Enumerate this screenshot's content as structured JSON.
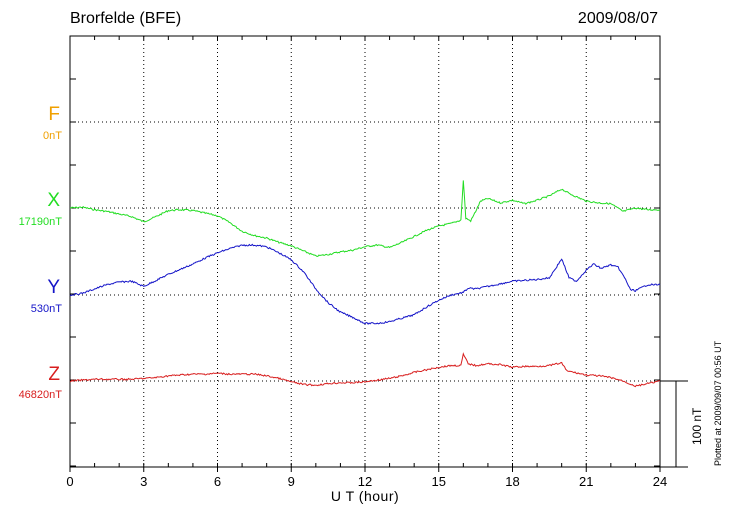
{
  "header": {
    "title": "Brorfelde (BFE)",
    "date": "2009/08/07"
  },
  "footer": {
    "plotted": "Plotted at 2009/09/07 00:56 UT"
  },
  "colors": {
    "F": "#f0a000",
    "X": "#22dd22",
    "Y": "#1414c8",
    "Z": "#d81e1e"
  },
  "chart_data": {
    "type": "line",
    "title": "Brorfelde (BFE)",
    "xlabel": "U T (hour)",
    "ylabel": "",
    "xlim": [
      0,
      24
    ],
    "x_ticks": [
      0,
      3,
      6,
      9,
      12,
      15,
      18,
      21,
      24
    ],
    "scale": {
      "label": "100 nT",
      "nT": 100
    },
    "legend": "left",
    "grid": true,
    "series": [
      {
        "name": "F",
        "baseline_label": "0nT",
        "color": "#f0a000",
        "offset_nT": 0,
        "x": [],
        "values": []
      },
      {
        "name": "X",
        "baseline_label": "17190nT",
        "color": "#22dd22",
        "offset_nT": 17190,
        "x": [
          0,
          0.5,
          1,
          1.5,
          2,
          2.5,
          3,
          3.5,
          4,
          4.5,
          5,
          5.5,
          6,
          6.5,
          7,
          7.5,
          8,
          8.5,
          9,
          9.5,
          10,
          10.5,
          11,
          11.5,
          12,
          12.5,
          13,
          13.5,
          14,
          14.5,
          15,
          15.5,
          15.9,
          16,
          16.1,
          16.3,
          16.5,
          16.7,
          17,
          17.5,
          18,
          18.5,
          19,
          19.5,
          20,
          20.3,
          20.6,
          21,
          21.5,
          22,
          22.5,
          23,
          23.5,
          24
        ],
        "values": [
          17190,
          17191,
          17188,
          17186,
          17183,
          17180,
          17174,
          17180,
          17187,
          17188,
          17187,
          17184,
          17181,
          17173,
          17163,
          17158,
          17155,
          17150,
          17146,
          17140,
          17134,
          17136,
          17139,
          17141,
          17145,
          17147,
          17144,
          17150,
          17157,
          17164,
          17169,
          17172,
          17176,
          17222,
          17178,
          17175,
          17186,
          17198,
          17201,
          17196,
          17199,
          17195,
          17199,
          17204,
          17212,
          17207,
          17203,
          17198,
          17196,
          17195,
          17186,
          17190,
          17188,
          17188
        ]
      },
      {
        "name": "Y",
        "baseline_label": "530nT",
        "color": "#1414c8",
        "offset_nT": 530,
        "x": [
          0,
          0.5,
          1,
          1.5,
          2,
          2.5,
          3,
          3.5,
          4,
          4.5,
          5,
          5.5,
          6,
          6.5,
          7,
          7.5,
          8,
          8.5,
          9,
          9.5,
          10,
          10.5,
          11,
          11.5,
          12,
          12.5,
          13,
          13.5,
          14,
          14.5,
          15,
          15.5,
          16,
          16.2,
          16.5,
          17,
          17.5,
          18,
          18.5,
          19,
          19.5,
          19.8,
          20,
          20.3,
          20.6,
          21,
          21.3,
          21.6,
          22,
          22.3,
          22.6,
          22.8,
          23,
          23.5,
          24
        ],
        "values": [
          530,
          532,
          537,
          542,
          545,
          546,
          540,
          547,
          554,
          560,
          566,
          573,
          579,
          584,
          588,
          588,
          586,
          579,
          571,
          557,
          537,
          521,
          510,
          504,
          497,
          497,
          499,
          503,
          507,
          516,
          524,
          530,
          533,
          538,
          537,
          540,
          543,
          546,
          547,
          548,
          550,
          563,
          572,
          550,
          546,
          559,
          566,
          561,
          565,
          562,
          548,
          536,
          535,
          542,
          542
        ]
      },
      {
        "name": "Z",
        "baseline_label": "46820nT",
        "color": "#d81e1e",
        "offset_nT": 46820,
        "x": [
          0,
          0.5,
          1,
          1.5,
          2,
          2.5,
          3,
          3.5,
          4,
          4.5,
          5,
          5.5,
          6,
          6.5,
          7,
          7.5,
          8,
          8.5,
          9,
          9.5,
          10,
          10.5,
          11,
          11.5,
          12,
          12.5,
          13,
          13.5,
          14,
          14.5,
          15,
          15.5,
          15.9,
          16,
          16.2,
          16.5,
          17,
          17.5,
          18,
          18.5,
          19,
          19.5,
          20,
          20.2,
          20.5,
          21,
          21.5,
          22,
          22.5,
          23,
          23.5,
          24
        ],
        "values": [
          46820,
          46821,
          46822,
          46822,
          46822,
          46822,
          46823,
          46824,
          46826,
          46827,
          46828,
          46828,
          46829,
          46828,
          46828,
          46828,
          46826,
          46823,
          46819,
          46816,
          46815,
          46817,
          46818,
          46818,
          46819,
          46821,
          46823,
          46826,
          46830,
          46833,
          46836,
          46838,
          46838,
          46851,
          46840,
          46838,
          46840,
          46839,
          46836,
          46837,
          46837,
          46838,
          46841,
          46832,
          46830,
          46827,
          46826,
          46824,
          46820,
          46814,
          46817,
          46820
        ]
      }
    ]
  }
}
